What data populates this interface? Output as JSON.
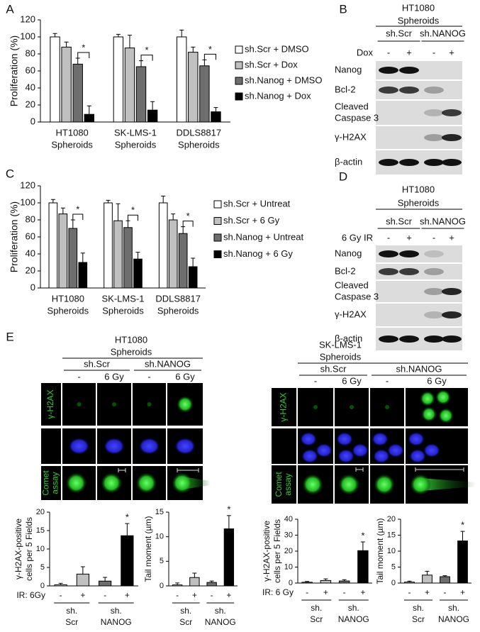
{
  "panel_labels": [
    "A",
    "B",
    "C",
    "D",
    "E"
  ],
  "chart_data": [
    {
      "type": "bar",
      "ylabel": [
        "Proliferation (%)"
      ],
      "categories": [
        [
          "HT1080",
          "Spheroids"
        ],
        [
          "SK-LMS-1",
          "Spheroids"
        ],
        [
          "DDLS8817",
          "Spheroids"
        ]
      ],
      "series": [
        {
          "name": "sh.Scr + DMSO",
          "color": "#ffffff",
          "values": [
            100,
            100,
            100
          ],
          "errors": [
            4,
            3,
            8
          ]
        },
        {
          "name": "sh.Scr + Dox",
          "color": "#c0c0c0",
          "values": [
            88,
            87,
            82
          ],
          "errors": [
            6,
            15,
            6
          ]
        },
        {
          "name": "sh.Nanog + DMSO",
          "color": "#6e6e6e",
          "values": [
            68,
            65,
            66
          ],
          "errors": [
            7,
            7,
            7
          ]
        },
        {
          "name": "sh.Nanog + Dox",
          "color": "#000000",
          "values": [
            9,
            14,
            12
          ],
          "errors": [
            10,
            10,
            5
          ]
        }
      ],
      "ylim": [
        0,
        120
      ],
      "yticks": [
        0,
        20,
        40,
        60,
        80,
        100,
        120
      ],
      "annotations": [
        "*",
        "*",
        "*"
      ],
      "legend": "right"
    },
    {
      "type": "bar",
      "ylabel": [
        "Proliferation (%)"
      ],
      "categories": [
        [
          "HT1080",
          "Spheroids"
        ],
        [
          "SK-LMS-1",
          "Spheroids"
        ],
        [
          "DDLS8817",
          "Spheroids"
        ]
      ],
      "series": [
        {
          "name": "sh.Scr + Untreat",
          "color": "#ffffff",
          "values": [
            100,
            100,
            100
          ],
          "errors": [
            4,
            3,
            8
          ]
        },
        {
          "name": "sh.Scr + 6 Gy",
          "color": "#c0c0c0",
          "values": [
            87,
            79,
            80
          ],
          "errors": [
            7,
            20,
            7
          ]
        },
        {
          "name": "sh.Nanog + Untreat",
          "color": "#6e6e6e",
          "values": [
            70,
            71,
            64
          ],
          "errors": [
            10,
            8,
            8
          ]
        },
        {
          "name": "sh.Nanog + 6 Gy",
          "color": "#000000",
          "values": [
            30,
            34,
            25
          ],
          "errors": [
            11,
            8,
            10
          ]
        }
      ],
      "ylim": [
        0,
        120
      ],
      "yticks": [
        0,
        20,
        40,
        60,
        80,
        100,
        120
      ],
      "annotations": [
        "*",
        "*",
        "*"
      ],
      "legend": "right"
    },
    {
      "type": "bar",
      "ylabel": [
        "γ-H2AX-positive",
        "cells per 5 Fields"
      ],
      "xlabel": "IR: 6Gy",
      "categories": [
        "-",
        "+",
        "-",
        "+"
      ],
      "values": [
        0.3,
        3.2,
        1.3,
        13.6
      ],
      "errors": [
        0.4,
        2,
        1,
        3.3
      ],
      "colors": [
        "#ffffff",
        "#c0c0c0",
        "#6e6e6e",
        "#000000"
      ],
      "groups": [
        [
          "sh.",
          "Scr"
        ],
        [
          "sh.",
          "NANOG"
        ]
      ],
      "annotations": [
        null,
        null,
        null,
        "*"
      ],
      "ylim": [
        0,
        20
      ],
      "yticks": [
        0,
        5,
        10,
        15,
        20
      ]
    },
    {
      "type": "bar",
      "ylabel": [
        "Tail moment (µm)"
      ],
      "categories": [
        "-",
        "+",
        "-",
        "+"
      ],
      "values": [
        0.2,
        1.7,
        0.7,
        11.6
      ],
      "errors": [
        0.4,
        0.9,
        0.3,
        2.7
      ],
      "colors": [
        "#ffffff",
        "#c0c0c0",
        "#6e6e6e",
        "#000000"
      ],
      "groups": [
        [
          "sh.",
          "Scr"
        ],
        [
          "sh.",
          "NANOG"
        ]
      ],
      "annotations": [
        null,
        null,
        null,
        "*"
      ],
      "ylim": [
        0,
        15
      ],
      "yticks": [
        0,
        5,
        10,
        15
      ]
    },
    {
      "type": "bar",
      "ylabel": [
        "γ-H2AX-positive",
        "cells per 5 Fields"
      ],
      "xlabel": "IR: 6 Gy",
      "categories": [
        "-",
        "+",
        "-",
        "+"
      ],
      "values": [
        0.5,
        1.6,
        1.3,
        20.3
      ],
      "errors": [
        0.5,
        1,
        0.8,
        5.5
      ],
      "colors": [
        "#ffffff",
        "#c0c0c0",
        "#6e6e6e",
        "#000000"
      ],
      "groups": [
        [
          "sh.",
          "Scr"
        ],
        [
          "sh.",
          "NANOG"
        ]
      ],
      "annotations": [
        null,
        null,
        null,
        "*"
      ],
      "ylim": [
        0,
        40
      ],
      "yticks": [
        0,
        10,
        20,
        30,
        40
      ]
    },
    {
      "type": "bar",
      "ylabel": [
        "Tail moment (µm)"
      ],
      "categories": [
        "-",
        "+",
        "-",
        "+"
      ],
      "values": [
        0.3,
        2.5,
        2,
        13.2
      ],
      "errors": [
        0.3,
        1.2,
        0.3,
        3
      ],
      "colors": [
        "#ffffff",
        "#c0c0c0",
        "#6e6e6e",
        "#000000"
      ],
      "groups": [
        [
          "sh.",
          "Scr"
        ],
        [
          "sh.",
          "NANOG"
        ]
      ],
      "annotations": [
        null,
        null,
        null,
        "*"
      ],
      "ylim": [
        0,
        20
      ],
      "yticks": [
        0,
        5,
        10,
        15,
        20
      ]
    }
  ],
  "blots": [
    {
      "title": [
        "HT1080",
        "Spheroids"
      ],
      "groups": [
        "sh.Scr",
        "sh.NANOG"
      ],
      "treatment": "Dox",
      "lanes": [
        "-",
        "+",
        "-",
        "+"
      ],
      "rows": [
        [
          "Nanog"
        ],
        [
          "Bcl-2"
        ],
        [
          "Cleaved",
          "Caspase 3"
        ],
        [
          "γ-H2AX"
        ],
        [
          "β-actin"
        ]
      ]
    },
    {
      "title": [
        "HT1080",
        "Spheroids"
      ],
      "groups": [
        "sh.Scr",
        "sh.NANOG"
      ],
      "treatment": "6 Gy IR",
      "lanes": [
        "-",
        "+",
        "-",
        "+"
      ],
      "rows": [
        [
          "Nanog"
        ],
        [
          "Bcl-2"
        ],
        [
          "Cleaved",
          "Caspase 3"
        ],
        [
          "γ-H2AX"
        ],
        [
          "β-actin"
        ]
      ]
    }
  ],
  "microscopy": [
    {
      "title": [
        "HT1080",
        "Spheroids"
      ],
      "groups": [
        "sh.Scr",
        "sh.NANOG"
      ],
      "lanes": [
        "-",
        "6 Gy",
        "-",
        "6 Gy"
      ],
      "rows": [
        [
          "γ-H2AX"
        ],
        null,
        [
          "Comet",
          "assay"
        ]
      ]
    },
    {
      "title": [
        "SK-LMS-1",
        "Spheroids"
      ],
      "groups": [
        "sh.Scr",
        "sh.NANOG"
      ],
      "lanes": [
        "-",
        "6 Gy",
        "-",
        "6 Gy"
      ],
      "rows": [
        [
          "γ-H2AX"
        ],
        null,
        [
          "Comet",
          "assay"
        ]
      ]
    }
  ]
}
